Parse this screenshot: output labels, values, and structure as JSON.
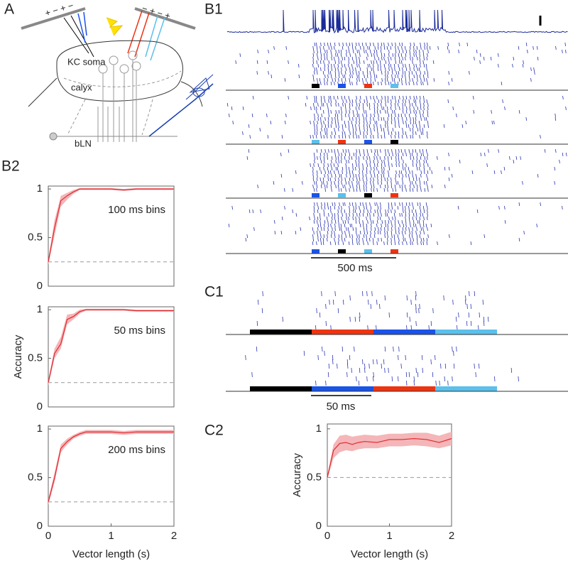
{
  "panel_labels": {
    "a": "A",
    "b1": "B1",
    "b2": "B2",
    "c1": "C1",
    "c2": "C2"
  },
  "diagram": {
    "soma": "KC soma",
    "calyx": "calyx",
    "bln": "bLN",
    "left_electrode": "+ − + −",
    "right_electrode": "− + − +"
  },
  "scale_bars": {
    "b1": "500 ms",
    "c1": "50 ms"
  },
  "chart_data": [
    {
      "type": "line",
      "annotation": "100 ms bins",
      "color": "#e0282e",
      "band_color": "#f4b6b8",
      "x": [
        0,
        0.1,
        0.2,
        0.3,
        0.4,
        0.5,
        0.6,
        0.8,
        1.0,
        1.2,
        1.4,
        1.6,
        1.8,
        2.0
      ],
      "values": [
        0.25,
        0.6,
        0.88,
        0.93,
        0.97,
        1.0,
        1.0,
        1.0,
        1.0,
        0.99,
        1.0,
        1.0,
        1.0,
        1.0
      ],
      "band": {
        "lower": [
          0.22,
          0.52,
          0.82,
          0.89,
          0.95,
          0.99,
          0.99,
          0.99,
          0.99,
          0.98,
          0.99,
          0.99,
          0.99,
          0.99
        ],
        "upper": [
          0.28,
          0.68,
          0.93,
          0.96,
          0.99,
          1.01,
          1.01,
          1.01,
          1.01,
          1.0,
          1.01,
          1.01,
          1.01,
          1.01
        ]
      },
      "chance": 0.25,
      "xlim": [
        0,
        2
      ],
      "ylim": [
        0,
        1.03
      ],
      "yticks": [
        0,
        0.5,
        1
      ]
    },
    {
      "type": "line",
      "annotation": "50 ms bins",
      "ylabel": "Accuracy",
      "color": "#e0282e",
      "band_color": "#f4b6b8",
      "x": [
        0,
        0.1,
        0.2,
        0.3,
        0.4,
        0.5,
        0.6,
        0.8,
        1.0,
        1.2,
        1.4,
        1.6,
        1.8,
        2.0
      ],
      "values": [
        0.25,
        0.55,
        0.65,
        0.9,
        0.93,
        0.98,
        1.0,
        1.0,
        1.0,
        1.0,
        0.99,
        0.99,
        0.99,
        0.99
      ],
      "band": {
        "lower": [
          0.22,
          0.5,
          0.6,
          0.85,
          0.9,
          0.96,
          0.99,
          0.99,
          0.99,
          0.99,
          0.98,
          0.98,
          0.98,
          0.98
        ],
        "upper": [
          0.28,
          0.6,
          0.72,
          0.95,
          0.96,
          1.0,
          1.01,
          1.01,
          1.01,
          1.01,
          1.0,
          1.0,
          1.0,
          1.0
        ]
      },
      "chance": 0.25,
      "xlim": [
        0,
        2
      ],
      "ylim": [
        0,
        1.03
      ],
      "yticks": [
        0,
        0.5,
        1
      ]
    },
    {
      "type": "line",
      "annotation": "200 ms bins",
      "xlabel": "Vector length (s)",
      "color": "#e0282e",
      "band_color": "#f4b6b8",
      "x": [
        0,
        0.1,
        0.2,
        0.3,
        0.4,
        0.5,
        0.6,
        0.8,
        1.0,
        1.2,
        1.4,
        1.6,
        1.8,
        2.0
      ],
      "values": [
        0.25,
        0.5,
        0.8,
        0.87,
        0.92,
        0.95,
        0.97,
        0.97,
        0.97,
        0.96,
        0.97,
        0.97,
        0.97,
        0.97
      ],
      "band": {
        "lower": [
          0.22,
          0.45,
          0.76,
          0.84,
          0.9,
          0.93,
          0.95,
          0.95,
          0.95,
          0.94,
          0.95,
          0.95,
          0.95,
          0.95
        ],
        "upper": [
          0.28,
          0.55,
          0.84,
          0.9,
          0.94,
          0.97,
          0.99,
          0.99,
          0.99,
          0.98,
          0.99,
          0.99,
          0.99,
          0.99
        ]
      },
      "chance": 0.25,
      "xlim": [
        0,
        2
      ],
      "ylim": [
        0,
        1.03
      ],
      "xticks": [
        0,
        1,
        2
      ],
      "yticks": [
        0,
        0.5,
        1
      ]
    },
    {
      "type": "line",
      "ylabel": "Accuracy",
      "xlabel": "Vector length (s)",
      "color": "#e0282e",
      "band_color": "#f4b6b8",
      "x": [
        0,
        0.1,
        0.2,
        0.3,
        0.4,
        0.5,
        0.6,
        0.8,
        1.0,
        1.2,
        1.4,
        1.6,
        1.8,
        2.0
      ],
      "values": [
        0.5,
        0.78,
        0.85,
        0.86,
        0.84,
        0.86,
        0.87,
        0.86,
        0.89,
        0.89,
        0.9,
        0.89,
        0.86,
        0.9
      ],
      "band": {
        "lower": [
          0.48,
          0.7,
          0.76,
          0.78,
          0.77,
          0.79,
          0.8,
          0.8,
          0.82,
          0.82,
          0.83,
          0.82,
          0.8,
          0.83
        ],
        "upper": [
          0.52,
          0.84,
          0.93,
          0.94,
          0.92,
          0.93,
          0.94,
          0.93,
          0.95,
          0.95,
          0.96,
          0.96,
          0.93,
          0.97
        ]
      },
      "chance": 0.5,
      "xlim": [
        0,
        2
      ],
      "ylim": [
        0,
        1.05
      ],
      "xticks": [
        0,
        1,
        2
      ],
      "yticks": [
        0,
        0.5,
        1
      ]
    }
  ]
}
